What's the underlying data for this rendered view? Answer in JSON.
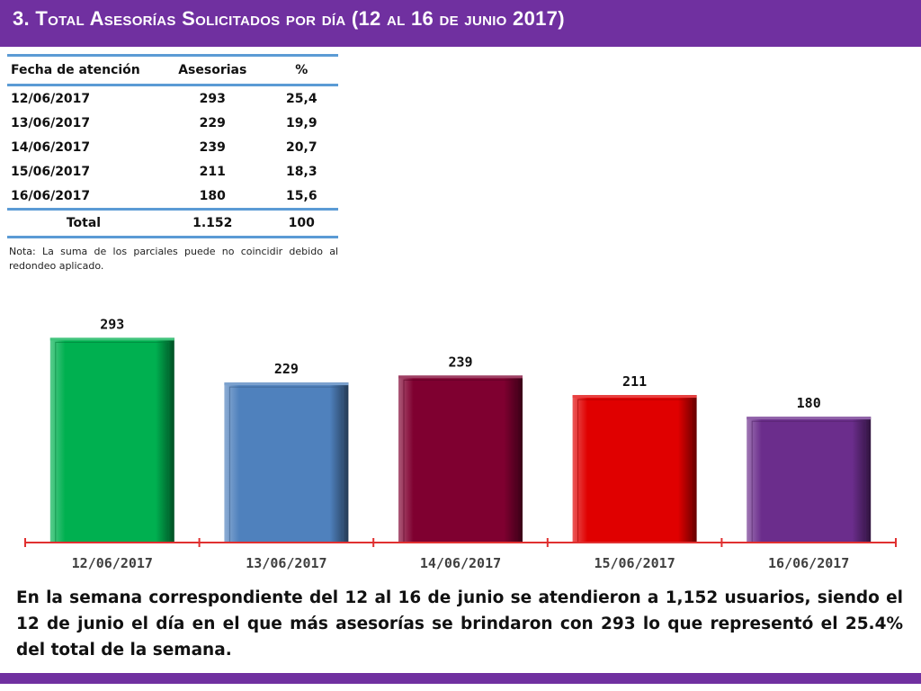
{
  "header": {
    "title": "3.  Total Asesorías Solicitados por día  (12 al 16 de junio 2017)",
    "background": "#7030a0"
  },
  "table": {
    "headers": [
      "Fecha de atención",
      "Asesorias",
      "%"
    ],
    "rows": [
      [
        "12/06/2017",
        "293",
        "25,4"
      ],
      [
        "13/06/2017",
        "229",
        "19,9"
      ],
      [
        "14/06/2017",
        "239",
        "20,7"
      ],
      [
        "15/06/2017",
        "211",
        "18,3"
      ],
      [
        "16/06/2017",
        "180",
        "15,6"
      ]
    ],
    "total": [
      "Total",
      "1.152",
      "100"
    ],
    "rule_color": "#5b9bd5"
  },
  "note": "Nota: La suma de los parciales puede no coincidir debido al redondeo aplicado.",
  "chart_data": {
    "type": "bar",
    "categories": [
      "12/06/2017",
      "13/06/2017",
      "14/06/2017",
      "15/06/2017",
      "16/06/2017"
    ],
    "values": [
      293,
      229,
      239,
      211,
      180
    ],
    "data_labels": [
      "293",
      "229",
      "239",
      "211",
      "180"
    ],
    "colors": [
      "#00b050",
      "#4f81bd",
      "#7f0030",
      "#e00000",
      "#6b2d8c"
    ],
    "ylim": [
      0,
      300
    ],
    "grid": false,
    "axis_color": "#e03030"
  },
  "summary": "En la semana correspondiente del 12 al 16 de junio se atendieron a 1,152 usuarios, siendo el 12 de junio el día en el que más asesorías se brindaron con 293 lo que representó el 25.4% del total de la semana."
}
